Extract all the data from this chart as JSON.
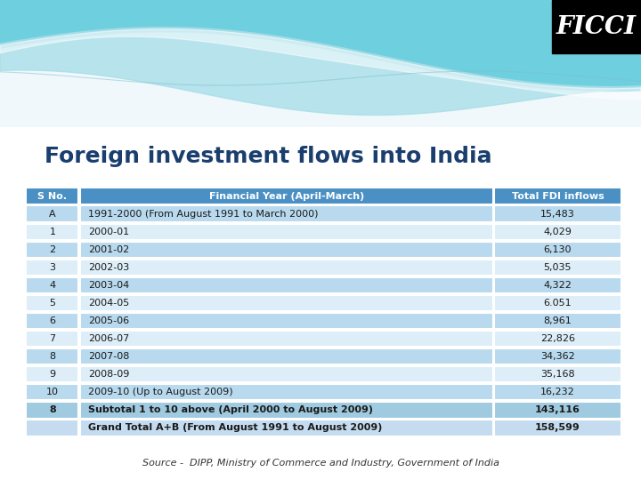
{
  "title": "Foreign investment flows into India",
  "source": "Source -  DIPP, Ministry of Commerce and Industry, Government of India",
  "ficci_text": "FICCI",
  "header": [
    "S No.",
    "Financial Year (April-March)",
    "Total FDI inflows"
  ],
  "rows": [
    [
      "A",
      "1991-2000 (From August 1991 to March 2000)",
      "15,483",
      true
    ],
    [
      "1",
      "2000-01",
      "4,029",
      false
    ],
    [
      "2",
      "2001-02",
      "6,130",
      true
    ],
    [
      "3",
      "2002-03",
      "5,035",
      false
    ],
    [
      "4",
      "2003-04",
      "4,322",
      true
    ],
    [
      "5",
      "2004-05",
      "6.051",
      false
    ],
    [
      "6",
      "2005-06",
      "8,961",
      true
    ],
    [
      "7",
      "2006-07",
      "22,826",
      false
    ],
    [
      "8",
      "2007-08",
      "34,362",
      true
    ],
    [
      "9",
      "2008-09",
      "35,168",
      false
    ],
    [
      "10",
      "2009-10 (Up to August 2009)",
      "16,232",
      true
    ],
    [
      "8",
      "Subtotal 1 to 10 above (April 2000 to August 2009)",
      "143,116",
      false
    ],
    [
      "",
      "Grand Total A+B (From August 1991 to August 2009)",
      "158,599",
      true
    ]
  ],
  "subtotal_row_idx": 11,
  "grandtotal_row_idx": 12,
  "header_bg": "#4A90C4",
  "header_text_color": "#FFFFFF",
  "row_bg_light": "#DDEEF8",
  "row_bg_dark": "#B8D9EE",
  "subtotal_bg": "#9FCAE0",
  "grandtotal_bg": "#C5DCF0",
  "title_color": "#1A3E6E",
  "ficci_bg": "#000000",
  "ficci_text_color": "#FFFFFF",
  "source_color": "#333333",
  "wave_bg": "#E8F4F8",
  "wave1_color": "#7ECFE0",
  "wave2_color": "#B0DDE8",
  "wave3_color": "#FFFFFF"
}
